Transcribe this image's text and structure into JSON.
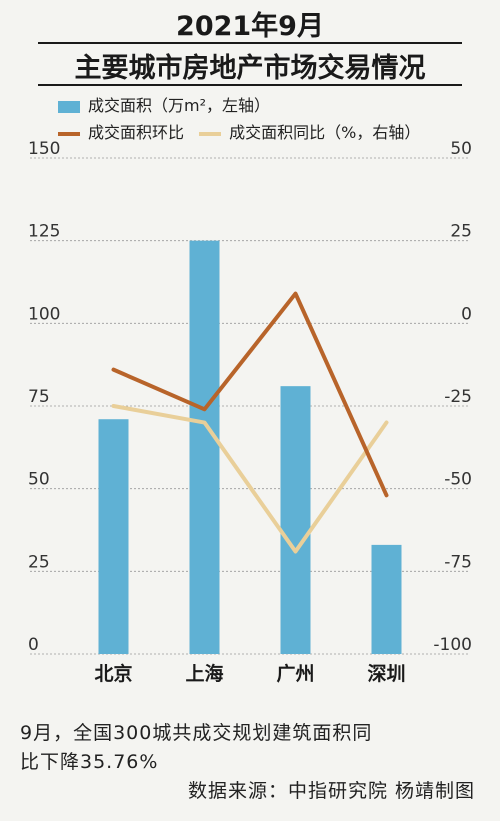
{
  "title": {
    "line1": "2021年9月",
    "line2": "主要城市房地产市场交易情况"
  },
  "legend": {
    "bar": "成交面积（万m²，左轴）",
    "line_mom": "成交面积环比",
    "line_yoy": "成交面积同比（%，右轴）"
  },
  "colors": {
    "bar": "#5fb1d4",
    "line_mom": "#b8642a",
    "line_yoy": "#e9cf99",
    "grid": "#9a9a9a"
  },
  "footer": {
    "note_line1": "9月，全国300城共成交规划建筑面积同",
    "note_line2": "比下降35.76%",
    "source": "数据来源：中指研究院  杨靖制图"
  },
  "chart_data": {
    "type": "bar",
    "categories": [
      "北京",
      "上海",
      "广州",
      "深圳"
    ],
    "left_axis": {
      "min": 0,
      "max": 150,
      "ticks": [
        0,
        25,
        50,
        75,
        100,
        125,
        150
      ]
    },
    "right_axis": {
      "min": -100,
      "max": 50,
      "ticks": [
        -100,
        -75,
        -50,
        -25,
        0,
        25,
        50
      ]
    },
    "grid": true,
    "series": [
      {
        "name": "成交面积（万m²，左轴）",
        "type": "bar",
        "axis": "left",
        "values": [
          71,
          125,
          81,
          33
        ]
      },
      {
        "name": "成交面积环比",
        "type": "line",
        "axis": "right",
        "values": [
          -14,
          -26,
          9,
          -52
        ]
      },
      {
        "name": "成交面积同比（%，右轴）",
        "type": "line",
        "axis": "right",
        "values": [
          -25,
          -30,
          -69,
          -30
        ]
      }
    ]
  }
}
